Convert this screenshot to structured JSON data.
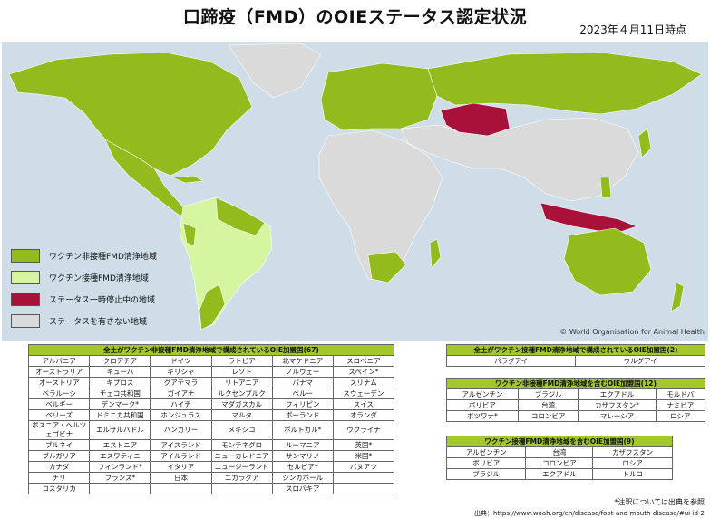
{
  "title": "口蹄疫（FMD）のOIEステータス認定状況",
  "date": "2023年４月11日時点",
  "colors": {
    "free_without_vaccination": "#93bb1e",
    "free_with_vaccination": "#d6f5a0",
    "suspended": "#a8123a",
    "no_status": "#dadada",
    "ocean": "#cfdde8",
    "header": "#a4c72a"
  },
  "legend": [
    {
      "label": "ワクチン非接種FMD清浄地域",
      "color": "#93bb1e"
    },
    {
      "label": "ワクチン接種FMD清浄地域",
      "color": "#d6f5a0"
    },
    {
      "label": "ステータス一時停止中の地域",
      "color": "#a8123a"
    },
    {
      "label": "ステータスを有さない地域",
      "color": "#dadada"
    }
  ],
  "copyright": "© World Organisation for Animal Health",
  "table1": {
    "header": "全土がワクチン非接種FMD清浄地域で構成されているOIE加盟国(67)",
    "rows": [
      [
        "アルバニア",
        "クロアチア",
        "ドイツ",
        "ラトビア",
        "北マケドニア",
        "スロベニア"
      ],
      [
        "オーストラリア",
        "キューバ",
        "ギリシャ",
        "レソト",
        "ノルウェー",
        "スペイン*"
      ],
      [
        "オーストリア",
        "キプロス",
        "グアテマラ",
        "リトアニア",
        "パナマ",
        "スリナム"
      ],
      [
        "ベラルーシ",
        "チェコ共和国",
        "ガイアナ",
        "ルクセンブルク",
        "ペルー",
        "スウェーデン"
      ],
      [
        "ベルギー",
        "デンマーク*",
        "ハイチ",
        "マダガスカル",
        "フィリピン",
        "スイス"
      ],
      [
        "ベリーズ",
        "ドミニカ共和国",
        "ホンジュラス",
        "マルタ",
        "ポーランド",
        "オランダ"
      ],
      [
        "ボスニア・ヘルツェゴビナ",
        "エルサルバドル",
        "ハンガリー",
        "メキシコ",
        "ポルトガル*",
        "ウクライナ"
      ],
      [
        "ブルネイ",
        "エストニア",
        "アイスランド",
        "モンテネグロ",
        "ルーマニア",
        "英国*"
      ],
      [
        "ブルガリア",
        "エスワティニ",
        "アイルランド",
        "ニューカレドニア",
        "サンマリノ",
        "米国*"
      ],
      [
        "カナダ",
        "フィンランド*",
        "イタリア",
        "ニュージーランド",
        "セルビア*",
        "バヌアツ"
      ],
      [
        "チリ",
        "フランス*",
        "日本",
        "ニカラグア",
        "シンガポール",
        ""
      ],
      [
        "コスタリカ",
        "",
        "",
        "",
        "スロバキア",
        ""
      ]
    ]
  },
  "table2": {
    "header": "全土がワクチン接種FMD清浄地域で構成されているOIE加盟国(2)",
    "rows": [
      [
        "パラグアイ",
        "ウルグアイ"
      ]
    ]
  },
  "table3": {
    "header": "ワクチン非接種FMD清浄地域を含むOIE加盟国(12)",
    "rows": [
      [
        "アルゼンチン",
        "ブラジル",
        "エクアドル",
        "モルドバ"
      ],
      [
        "ボリビア",
        "台湾",
        "カザフスタン*",
        "ナミビア"
      ],
      [
        "ボツワナ*",
        "コロンビア",
        "マレーシア",
        "ロシア"
      ]
    ]
  },
  "table4": {
    "header": "ワクチン接種FMD清浄地域を含むOIE加盟国(9)",
    "rows": [
      [
        "アルゼンチン",
        "台湾",
        "カザフスタン"
      ],
      [
        "ボリビア",
        "コロンビア",
        "ロシア"
      ],
      [
        "ブラジル",
        "エクアドル",
        "トルコ"
      ]
    ]
  },
  "note": "*注釈については出典を参照",
  "source": "出典：https://www.woah.org/en/disease/foot-and-mouth-disease/#ui-id-2"
}
